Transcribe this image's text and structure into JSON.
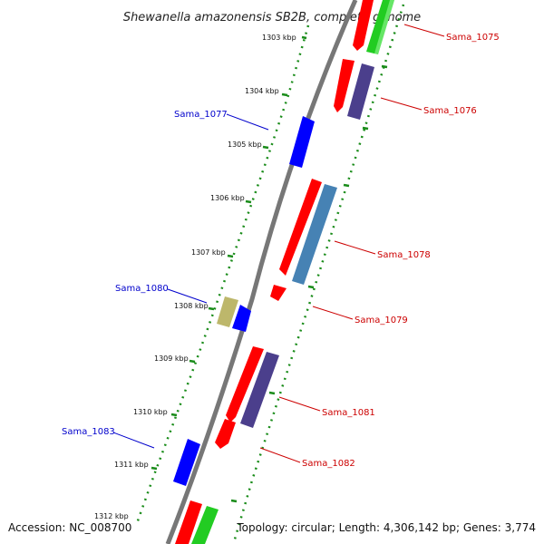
{
  "title": "Shewanella amazonensis SB2B, complete genome",
  "footer": {
    "accession": "Accession: NC_008700",
    "summary": "Topology: circular; Length: 4,306,142 bp; Genes: 3,774"
  },
  "colors": {
    "backbone": "#808080",
    "ticks": "#1a8c1a",
    "forward_label": "#0000cc",
    "reverse_label": "#cc0000",
    "gene_red": "#ff0000",
    "gene_green": "#22cc22",
    "gene_purple": "#4b3f8c",
    "gene_steelblue": "#4682b4",
    "gene_blue": "#0000ff",
    "gene_khaki": "#bdb76b"
  },
  "kbp_ticks": [
    "1303 kbp",
    "1304 kbp",
    "1305 kbp",
    "1306 kbp",
    "1307 kbp",
    "1308 kbp",
    "1309 kbp",
    "1310 kbp",
    "1311 kbp",
    "1312 kbp"
  ],
  "gene_labels": [
    {
      "name": "Sama_1075",
      "strand": "reverse"
    },
    {
      "name": "Sama_1076",
      "strand": "reverse"
    },
    {
      "name": "Sama_1077",
      "strand": "forward"
    },
    {
      "name": "Sama_1078",
      "strand": "reverse"
    },
    {
      "name": "Sama_1079",
      "strand": "reverse"
    },
    {
      "name": "Sama_1080",
      "strand": "forward"
    },
    {
      "name": "Sama_1081",
      "strand": "reverse"
    },
    {
      "name": "Sama_1082",
      "strand": "reverse"
    },
    {
      "name": "Sama_1083",
      "strand": "forward"
    }
  ]
}
